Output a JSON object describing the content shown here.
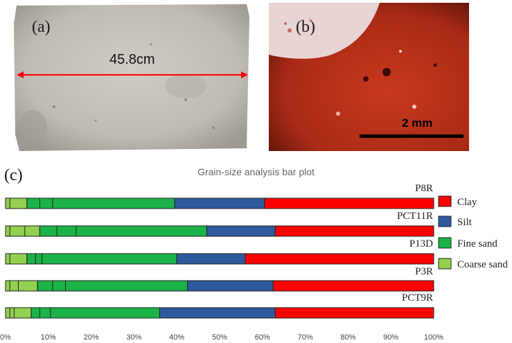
{
  "panel_a": {
    "label": "(a)",
    "measurement": "45.8cm"
  },
  "panel_b": {
    "label": "(b)",
    "scale_bar": "2 mm"
  },
  "panel_c": {
    "label": "(c)"
  },
  "colors": {
    "clay": "#ff0000",
    "silt": "#2e5a9c",
    "fine_sand": "#1bb24a",
    "coarse_sand": "#92d050",
    "brick": "#c9c6c0",
    "thin_section": "#b8301c",
    "arrow": "#ff0000"
  },
  "chart_data": {
    "type": "bar",
    "orientation": "horizontal",
    "stacked": true,
    "title": "Grain-size analysis bar plot",
    "categories": [
      "P8R",
      "PCT11R",
      "P13D",
      "P3R",
      "PCT9R"
    ],
    "series": [
      {
        "name": "Coarse sand",
        "values": [
          5.0,
          8.0,
          5.0,
          7.5,
          6.0
        ]
      },
      {
        "name": "Fine sand",
        "values": [
          34.5,
          39.0,
          35.0,
          35.0,
          30.0
        ]
      },
      {
        "name": "Silt",
        "values": [
          21.0,
          16.0,
          16.0,
          20.0,
          27.0
        ]
      },
      {
        "name": "Clay",
        "values": [
          39.5,
          37.0,
          44.0,
          37.5,
          37.0
        ]
      }
    ],
    "sub_dividers": [
      [
        1.0,
        5.0,
        8.0,
        11.0
      ],
      [
        1.0,
        4.5,
        8.0,
        12.0,
        16.5
      ],
      [
        1.0,
        5.0,
        7.0,
        8.5
      ],
      [
        1.0,
        3.0,
        7.5,
        11.0,
        14.0
      ],
      [
        1.0,
        2.0,
        6.0,
        8.0,
        10.5
      ]
    ],
    "xlim": [
      0,
      100
    ],
    "xticks": [
      "0%",
      "10%",
      "20%",
      "30%",
      "40%",
      "50%",
      "60%",
      "70%",
      "80%",
      "90%",
      "100%"
    ],
    "legend_order": [
      "Clay",
      "Silt",
      "Fine sand",
      "Coarse sand"
    ],
    "legend_position": "right",
    "grid": false
  }
}
